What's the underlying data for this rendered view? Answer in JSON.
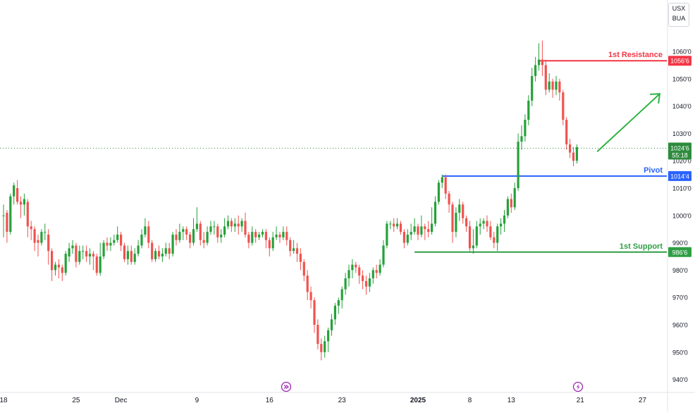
{
  "currency_box": {
    "line1": "USX",
    "line2": "BUA"
  },
  "chart_data": {
    "type": "candlestick",
    "y_axis": {
      "range": [
        937,
        1067
      ],
      "tick_values": [
        940,
        950,
        960,
        970,
        980,
        990,
        1000,
        1010,
        1020,
        1030,
        1040,
        1050,
        1060
      ],
      "tick_labels": [
        "940'0",
        "950'0",
        "960'0",
        "970'0",
        "980'0",
        "990'0",
        "1000'0",
        "1010'0",
        "1020'0",
        "1030'0",
        "1040'0",
        "1050'0",
        "1060'0"
      ]
    },
    "x_axis": {
      "tick_labels": [
        {
          "label": "18",
          "x": 0,
          "bold": false
        },
        {
          "label": "25",
          "x": 21,
          "bold": false
        },
        {
          "label": "Dec",
          "x": 34,
          "bold": false
        },
        {
          "label": "9",
          "x": 56,
          "bold": false
        },
        {
          "label": "16",
          "x": 77,
          "bold": false
        },
        {
          "label": "23",
          "x": 98,
          "bold": false
        },
        {
          "label": "2025",
          "x": 120,
          "bold": true
        },
        {
          "label": "8",
          "x": 135,
          "bold": false
        },
        {
          "label": "13",
          "x": 147,
          "bold": false
        },
        {
          "label": "21",
          "x": 167,
          "bold": false
        },
        {
          "label": "27",
          "x": 185,
          "bold": false
        }
      ]
    },
    "colors": {
      "up": "#26a13a",
      "down": "#ef5350",
      "resistance": "#f23645",
      "pivot": "#2962ff",
      "support": "#2f9e44",
      "arrow": "#2fb344",
      "current": "#2e8b3d"
    },
    "candles": [
      [
        0,
        1000,
        1000,
        1004,
        992
      ],
      [
        1,
        1001,
        994,
        1002,
        990
      ],
      [
        2,
        994,
        1007,
        1008,
        993
      ],
      [
        3,
        1007,
        1011,
        1012,
        1004
      ],
      [
        4,
        1010,
        1005,
        1013,
        1004
      ],
      [
        5,
        1005,
        1004,
        1007,
        999
      ],
      [
        6,
        1004,
        1006,
        1008,
        1000
      ],
      [
        7,
        1005,
        996,
        1006,
        992
      ],
      [
        8,
        996,
        995,
        998,
        991
      ],
      [
        9,
        995,
        990,
        996,
        987
      ],
      [
        10,
        991,
        990,
        993,
        985
      ],
      [
        11,
        990,
        994,
        995,
        989
      ],
      [
        12,
        994,
        994,
        997,
        991
      ],
      [
        13,
        993,
        987,
        995,
        982
      ],
      [
        14,
        987,
        980,
        988,
        976
      ],
      [
        15,
        980,
        982,
        983,
        978
      ],
      [
        16,
        982,
        981,
        984,
        977
      ],
      [
        17,
        981,
        979,
        982,
        976
      ],
      [
        18,
        979,
        986,
        987,
        978
      ],
      [
        19,
        985,
        988,
        990,
        983
      ],
      [
        20,
        988,
        989,
        991,
        986
      ],
      [
        21,
        989,
        983,
        990,
        981
      ],
      [
        22,
        983,
        987,
        989,
        982
      ],
      [
        23,
        987,
        987,
        989,
        984
      ],
      [
        24,
        987,
        985,
        989,
        983
      ],
      [
        25,
        985,
        986,
        988,
        982
      ],
      [
        26,
        986,
        985,
        987,
        980
      ],
      [
        27,
        985,
        979,
        986,
        978
      ],
      [
        28,
        979,
        985,
        990,
        978
      ],
      [
        29,
        985,
        990,
        991,
        984
      ],
      [
        30,
        990,
        989,
        992,
        987
      ],
      [
        31,
        989,
        990,
        992,
        987
      ],
      [
        32,
        990,
        991,
        993,
        989
      ],
      [
        33,
        991,
        993,
        996,
        990
      ],
      [
        34,
        993,
        989,
        994,
        987
      ],
      [
        35,
        989,
        984,
        990,
        983
      ],
      [
        36,
        984,
        987,
        989,
        982
      ],
      [
        37,
        987,
        983,
        989,
        982
      ],
      [
        38,
        983,
        986,
        988,
        982
      ],
      [
        39,
        986,
        989,
        991,
        985
      ],
      [
        40,
        989,
        993,
        995,
        988
      ],
      [
        41,
        993,
        996,
        999,
        992
      ],
      [
        42,
        996,
        990,
        998,
        988
      ],
      [
        43,
        990,
        984,
        991,
        983
      ],
      [
        44,
        984,
        987,
        988,
        983
      ],
      [
        45,
        987,
        985,
        989,
        984
      ],
      [
        46,
        985,
        986,
        988,
        983
      ],
      [
        47,
        986,
        988,
        990,
        985
      ],
      [
        48,
        988,
        986,
        990,
        984
      ],
      [
        49,
        986,
        993,
        994,
        985
      ],
      [
        50,
        993,
        991,
        995,
        989
      ],
      [
        51,
        991,
        994,
        997,
        990
      ],
      [
        52,
        994,
        995,
        996,
        991
      ],
      [
        53,
        995,
        993,
        996,
        991
      ],
      [
        54,
        993,
        990,
        994,
        988
      ],
      [
        55,
        990,
        995,
        999,
        989
      ],
      [
        56,
        995,
        997,
        1003,
        994
      ],
      [
        57,
        997,
        991,
        998,
        989
      ],
      [
        58,
        991,
        990,
        994,
        988
      ],
      [
        59,
        990,
        994,
        996,
        989
      ],
      [
        60,
        994,
        996,
        998,
        993
      ],
      [
        61,
        996,
        996,
        998,
        993
      ],
      [
        62,
        996,
        992,
        997,
        990
      ],
      [
        63,
        992,
        993,
        995,
        990
      ],
      [
        64,
        993,
        996,
        999,
        992
      ],
      [
        65,
        996,
        998,
        1000,
        995
      ],
      [
        66,
        998,
        996,
        999,
        994
      ],
      [
        67,
        996,
        997,
        999,
        994
      ],
      [
        68,
        997,
        996,
        1000,
        993
      ],
      [
        69,
        996,
        998,
        999,
        994
      ],
      [
        70,
        998,
        993,
        1001,
        992
      ],
      [
        71,
        993,
        990,
        994,
        988
      ],
      [
        72,
        990,
        994,
        996,
        989
      ],
      [
        73,
        994,
        992,
        995,
        990
      ],
      [
        74,
        992,
        993,
        994,
        991
      ],
      [
        75,
        993,
        994,
        995,
        992
      ],
      [
        76,
        994,
        991,
        995,
        988
      ],
      [
        77,
        991,
        988,
        992,
        985
      ],
      [
        78,
        988,
        992,
        994,
        987
      ],
      [
        79,
        992,
        993,
        996,
        991
      ],
      [
        80,
        993,
        992,
        994,
        990
      ],
      [
        81,
        992,
        994,
        996,
        991
      ],
      [
        82,
        994,
        991,
        996,
        989
      ],
      [
        83,
        991,
        987,
        992,
        985
      ],
      [
        84,
        987,
        988,
        991,
        986
      ],
      [
        85,
        988,
        986,
        990,
        983
      ],
      [
        86,
        986,
        983,
        988,
        980
      ],
      [
        87,
        983,
        978,
        984,
        976
      ],
      [
        88,
        978,
        972,
        980,
        969
      ],
      [
        89,
        972,
        969,
        974,
        966
      ],
      [
        90,
        969,
        960,
        970,
        957
      ],
      [
        91,
        960,
        953,
        962,
        951
      ],
      [
        92,
        953,
        950,
        955,
        947
      ],
      [
        93,
        950,
        954,
        956,
        948
      ],
      [
        94,
        954,
        958,
        959,
        950
      ],
      [
        95,
        958,
        962,
        964,
        956
      ],
      [
        96,
        962,
        967,
        968,
        960
      ],
      [
        97,
        967,
        969,
        970,
        964
      ],
      [
        98,
        969,
        973,
        974,
        966
      ],
      [
        99,
        973,
        977,
        979,
        971
      ],
      [
        100,
        977,
        980,
        982,
        974
      ],
      [
        101,
        980,
        982,
        984,
        977
      ],
      [
        102,
        982,
        981,
        983,
        979
      ],
      [
        103,
        981,
        978,
        982,
        975
      ],
      [
        104,
        978,
        976,
        980,
        973
      ],
      [
        105,
        976,
        974,
        978,
        971
      ],
      [
        106,
        974,
        977,
        979,
        972
      ],
      [
        107,
        977,
        980,
        981,
        975
      ],
      [
        108,
        980,
        979,
        982,
        977
      ],
      [
        109,
        979,
        982,
        984,
        978
      ],
      [
        110,
        982,
        989,
        991,
        981
      ],
      [
        111,
        989,
        997,
        998,
        988
      ],
      [
        112,
        997,
        997,
        998,
        995
      ],
      [
        113,
        997,
        996,
        999,
        994
      ],
      [
        114,
        996,
        997,
        999,
        995
      ],
      [
        115,
        997,
        994,
        998,
        993
      ],
      [
        116,
        994,
        990,
        995,
        988
      ],
      [
        117,
        990,
        993,
        995,
        989
      ],
      [
        118,
        993,
        994,
        997,
        991
      ],
      [
        119,
        994,
        996,
        999,
        993
      ],
      [
        120,
        996,
        993,
        997,
        991
      ],
      [
        121,
        993,
        996,
        1000,
        992
      ],
      [
        122,
        996,
        995,
        997,
        991
      ],
      [
        123,
        995,
        994,
        998,
        992
      ],
      [
        124,
        994,
        997,
        1003,
        993
      ],
      [
        125,
        997,
        1005,
        1007,
        996
      ],
      [
        126,
        1005,
        1012,
        1013,
        1004
      ],
      [
        127,
        1012,
        1014,
        1015,
        1010
      ],
      [
        128,
        1014,
        1008,
        1015,
        1006
      ],
      [
        129,
        1008,
        1004,
        1009,
        1001
      ],
      [
        130,
        1004,
        994,
        1005,
        990
      ],
      [
        131,
        994,
        1001,
        1003,
        992
      ],
      [
        132,
        1001,
        1004,
        1006,
        998
      ],
      [
        133,
        1004,
        999,
        1005,
        997
      ],
      [
        134,
        999,
        996,
        1000,
        994
      ],
      [
        135,
        996,
        988,
        998,
        987
      ],
      [
        136,
        988,
        989,
        995,
        986
      ],
      [
        137,
        989,
        996,
        998,
        988
      ],
      [
        138,
        996,
        997,
        999,
        993
      ],
      [
        139,
        997,
        998,
        999,
        995
      ],
      [
        140,
        998,
        996,
        1000,
        994
      ],
      [
        141,
        996,
        992,
        998,
        991
      ],
      [
        142,
        992,
        990,
        994,
        988
      ],
      [
        143,
        990,
        996,
        997,
        987
      ],
      [
        144,
        996,
        997,
        999,
        993
      ],
      [
        145,
        997,
        1000,
        1002,
        994
      ],
      [
        146,
        1000,
        1006,
        1007,
        999
      ],
      [
        147,
        1006,
        1003,
        1008,
        1001
      ],
      [
        148,
        1003,
        1010,
        1012,
        1002
      ],
      [
        149,
        1010,
        1027,
        1030,
        1009
      ],
      [
        150,
        1027,
        1029,
        1033,
        1024
      ],
      [
        151,
        1029,
        1035,
        1037,
        1027
      ],
      [
        152,
        1035,
        1042,
        1044,
        1033
      ],
      [
        153,
        1042,
        1051,
        1054,
        1040
      ],
      [
        154,
        1051,
        1055,
        1058,
        1049
      ],
      [
        155,
        1055,
        1057,
        1063,
        1053
      ],
      [
        156,
        1057,
        1055,
        1064,
        1051
      ],
      [
        157,
        1055,
        1046,
        1057,
        1044
      ],
      [
        158,
        1046,
        1049,
        1052,
        1045
      ],
      [
        159,
        1049,
        1046,
        1050,
        1043
      ],
      [
        160,
        1046,
        1049,
        1051,
        1044
      ],
      [
        161,
        1049,
        1045,
        1050,
        1042
      ],
      [
        162,
        1045,
        1035,
        1046,
        1033
      ],
      [
        163,
        1035,
        1026,
        1036,
        1024
      ],
      [
        164,
        1026,
        1023,
        1028,
        1021
      ],
      [
        165,
        1023,
        1020,
        1025,
        1018
      ],
      [
        166,
        1020,
        1025,
        1026,
        1019
      ]
    ],
    "levels": [
      {
        "name": "1st Resistance",
        "value": 1056.6,
        "value_label": "1056'6",
        "color": "#f23645",
        "start_index": 155
      },
      {
        "name": "Pivot",
        "value": 1014.4,
        "value_label": "1014'4",
        "color": "#2962ff",
        "start_index": 127
      },
      {
        "name": "1st Support",
        "value": 986.6,
        "value_label": "986'6",
        "color": "#2f9e44",
        "start_index": 119
      }
    ],
    "current_price": {
      "value": 1024.6,
      "value_label": "1024'6",
      "timer": "55:18"
    },
    "arrow": {
      "from": {
        "index": 172,
        "value": 1023.5
      },
      "to": {
        "index": 190,
        "value": 1044.5
      }
    }
  }
}
